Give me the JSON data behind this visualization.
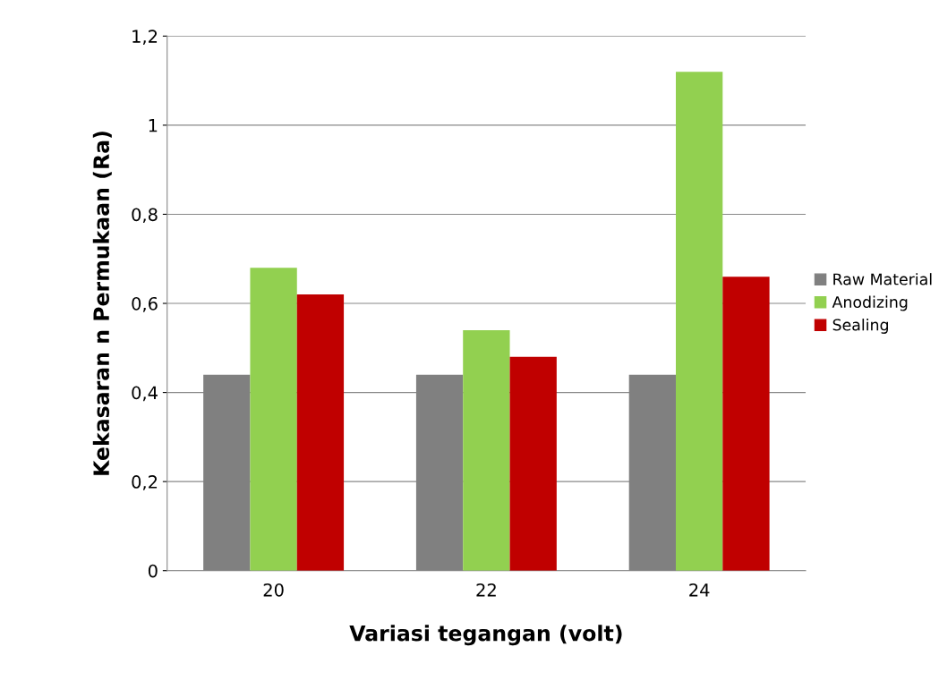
{
  "chart_data": {
    "type": "bar",
    "xlabel": "Variasi tegangan (volt)",
    "ylabel": "Kekasaran n Permukaan (Ra)",
    "categories": [
      "20",
      "22",
      "24"
    ],
    "series": [
      {
        "name": "Raw Material",
        "color": "#808080",
        "values": [
          0.44,
          0.44,
          0.44
        ]
      },
      {
        "name": "Anodizing",
        "color": "#92d050",
        "values": [
          0.68,
          0.54,
          1.12
        ]
      },
      {
        "name": "Sealing",
        "color": "#c00000",
        "values": [
          0.62,
          0.48,
          0.66
        ]
      }
    ],
    "ylim": [
      0,
      1.2
    ],
    "yticks": [
      0,
      {
        "value": 0.2,
        "label": "0,2"
      },
      {
        "value": 0.4,
        "label": "0,4"
      },
      {
        "value": 0.6,
        "label": "0,6"
      },
      {
        "value": 0.8,
        "label": "0,8"
      },
      1,
      {
        "value": 1.2,
        "label": "1,2"
      }
    ],
    "grid": "y",
    "legend": "right"
  }
}
